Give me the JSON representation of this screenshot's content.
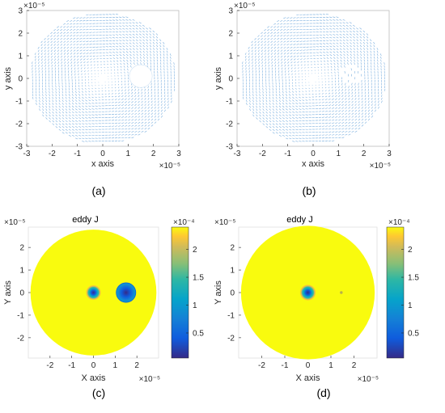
{
  "chart_data": [
    {
      "type": "quiver",
      "panel": "(a)",
      "xlabel": "x axis",
      "ylabel": "y axis",
      "x_exponent": "×10⁻⁵",
      "y_exponent": "×10⁻⁵",
      "xlim": [
        -3,
        3
      ],
      "ylim": [
        -3,
        3
      ],
      "xticks": [
        "-3",
        "-2",
        "-1",
        "0",
        "1",
        "2",
        "3"
      ],
      "yticks": [
        "-3",
        "-2",
        "-1",
        "0",
        "1",
        "2",
        "3"
      ],
      "domain": {
        "shape": "disk",
        "center": [
          0,
          0
        ],
        "radius": 2.9
      },
      "features": [
        {
          "kind": "central low-magnitude region",
          "center": [
            0,
            0
          ],
          "radius": 0.3
        },
        {
          "kind": "defect hole",
          "center": [
            1.5,
            0.1
          ],
          "radius": 0.45,
          "filled": true
        }
      ],
      "color": "#6fa8dc"
    },
    {
      "type": "quiver",
      "panel": "(b)",
      "xlabel": "x axis",
      "ylabel": "y axis",
      "x_exponent": "×10⁻⁵",
      "y_exponent": "×10⁻⁵",
      "xlim": [
        -3,
        3
      ],
      "ylim": [
        -3,
        3
      ],
      "xticks": [
        "-3",
        "-2",
        "-1",
        "0",
        "1",
        "2",
        "3"
      ],
      "yticks": [
        "-3",
        "-2",
        "-1",
        "0",
        "1",
        "2",
        "3"
      ],
      "domain": {
        "shape": "disk",
        "center": [
          0,
          0
        ],
        "radius": 2.9
      },
      "features": [
        {
          "kind": "central low-magnitude region",
          "center": [
            0,
            0
          ],
          "radius": 0.3
        },
        {
          "kind": "defect hole",
          "center": [
            1.5,
            0.1
          ],
          "radius": 0.45,
          "filled": false
        }
      ],
      "color": "#6fa8dc"
    },
    {
      "type": "heatmap",
      "panel": "(c)",
      "title": "eddy J",
      "xlabel": "X axis",
      "ylabel": "Y axis",
      "x_exponent": "×10⁻⁵",
      "y_exponent": "×10⁻⁵",
      "xlim": [
        -3,
        3
      ],
      "ylim": [
        -2.9,
        2.9
      ],
      "xticks": [
        "-2",
        "-1",
        "0",
        "1",
        "2"
      ],
      "yticks": [
        "-2",
        "-1",
        "0",
        "1",
        "2"
      ],
      "colorbar": {
        "exponent": "×10⁻⁴",
        "min": 0.05,
        "max": 2.4,
        "ticks": [
          "0.5",
          "1",
          "1.5",
          "2"
        ],
        "tick_values": [
          0.5,
          1,
          1.5,
          2
        ],
        "colormap": "parula"
      },
      "domain": {
        "shape": "disk",
        "center": [
          0,
          0
        ],
        "radius": 2.9,
        "value": 2.4
      },
      "features": [
        {
          "kind": "central minimum",
          "center": [
            0,
            0
          ],
          "radius": 0.35,
          "min_value": 0.05
        },
        {
          "kind": "defect hole",
          "center": [
            1.5,
            0
          ],
          "radius": 0.45,
          "min_value": 0.05
        }
      ]
    },
    {
      "type": "heatmap",
      "panel": "(d)",
      "title": "eddy J",
      "xlabel": "X axis",
      "ylabel": "Y axis",
      "x_exponent": "×10⁻⁵",
      "y_exponent": "×10⁻⁵",
      "xlim": [
        -3,
        3
      ],
      "ylim": [
        -2.9,
        2.9
      ],
      "xticks": [
        "-2",
        "-1",
        "0",
        "1",
        "2"
      ],
      "yticks": [
        "-2",
        "-1",
        "0",
        "1",
        "2"
      ],
      "colorbar": {
        "exponent": "×10⁻⁴",
        "min": 0.05,
        "max": 2.4,
        "ticks": [
          "0.5",
          "1",
          "1.5",
          "2"
        ],
        "tick_values": [
          0.5,
          1,
          1.5,
          2
        ],
        "colormap": "parula"
      },
      "domain": {
        "shape": "disk",
        "center": [
          0,
          0
        ],
        "radius": 2.9,
        "value": 2.4
      },
      "features": [
        {
          "kind": "central minimum",
          "center": [
            0,
            0
          ],
          "radius": 0.35,
          "min_value": 0.05
        },
        {
          "kind": "small notch",
          "center": [
            1.45,
            0
          ],
          "radius": 0.06
        }
      ]
    }
  ],
  "captions": [
    "(a)",
    "(b)",
    "(c)",
    "(d)"
  ]
}
